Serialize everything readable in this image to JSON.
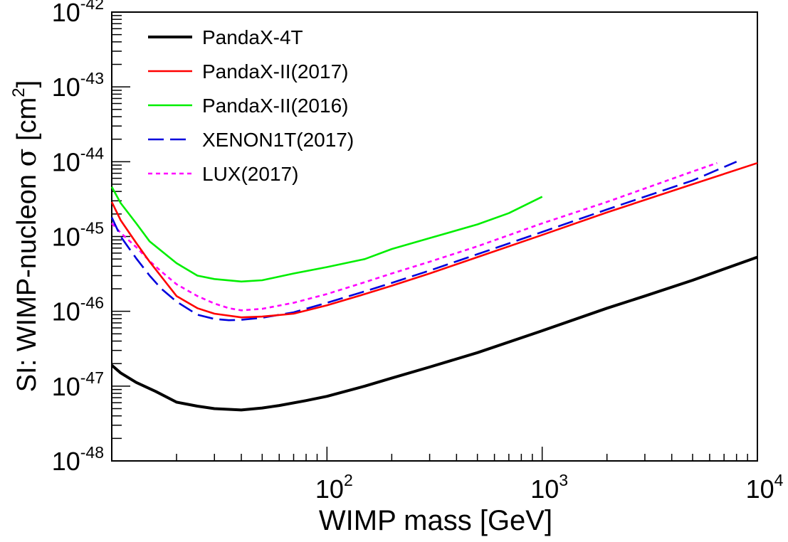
{
  "chart_data": {
    "type": "line",
    "title": "",
    "xlabel": "WIMP mass [GeV]",
    "ylabel": {
      "prefix": "SI: WIMP-nucleon ",
      "symbol": "σ",
      "unit_open": " [cm",
      "unit_exp": "2",
      "unit_close": "]"
    },
    "xscale": "log",
    "yscale": "log",
    "xlim": [
      10,
      10000
    ],
    "ylim": [
      1e-48,
      1e-42
    ],
    "xticks": [
      {
        "value": 100,
        "base": "10",
        "exp": "2"
      },
      {
        "value": 1000,
        "base": "10",
        "exp": "3"
      },
      {
        "value": 10000,
        "base": "10",
        "exp": "4"
      }
    ],
    "yticks": [
      {
        "value": 1e-48,
        "base": "10",
        "exp": "-48"
      },
      {
        "value": 1e-47,
        "base": "10",
        "exp": "-47"
      },
      {
        "value": 1e-46,
        "base": "10",
        "exp": "-46"
      },
      {
        "value": 1e-45,
        "base": "10",
        "exp": "-45"
      },
      {
        "value": 1e-44,
        "base": "10",
        "exp": "-44"
      },
      {
        "value": 1e-43,
        "base": "10",
        "exp": "-43"
      },
      {
        "value": 1e-42,
        "base": "10",
        "exp": "-42"
      }
    ],
    "grid": false,
    "legend_position": "top-left",
    "series": [
      {
        "name": "PandaX-4T",
        "color": "#000000",
        "dash": "solid",
        "width": "thick",
        "x": [
          10,
          11,
          13,
          16,
          20,
          25,
          30,
          40,
          50,
          60,
          80,
          100,
          150,
          200,
          300,
          500,
          1000,
          2000,
          3000,
          5000,
          10000
        ],
        "y": [
          1.9e-47,
          1.5e-47,
          1.12e-47,
          8.5e-48,
          6.1e-48,
          5.4e-48,
          5e-48,
          4.8e-48,
          5.1e-48,
          5.5e-48,
          6.4e-48,
          7.3e-48,
          1e-47,
          1.28e-47,
          1.8e-47,
          2.8e-47,
          5.5e-47,
          1.1e-46,
          1.6e-46,
          2.6e-46,
          5.3e-46
        ]
      },
      {
        "name": "PandaX-II(2017)",
        "color": "#ff0000",
        "dash": "solid",
        "width": "normal",
        "x": [
          10,
          11,
          13,
          15,
          17,
          20,
          25,
          30,
          40,
          50,
          70,
          100,
          150,
          200,
          300,
          500,
          1000,
          2000,
          5000,
          10000
        ],
        "y": [
          2.9e-45,
          1.65e-45,
          8.2e-46,
          4.6e-46,
          2.9e-46,
          1.6e-46,
          1.1e-46,
          9.3e-47,
          8.3e-47,
          8.5e-47,
          9.3e-47,
          1.2e-46,
          1.7e-46,
          2.2e-46,
          3.2e-46,
          5.3e-46,
          1.05e-45,
          2.1e-45,
          5e-45,
          9.6e-45
        ]
      },
      {
        "name": "PandaX-II(2016)",
        "color": "#00ee00",
        "dash": "solid",
        "width": "normal",
        "x": [
          10,
          11,
          13,
          15,
          20,
          25,
          30,
          40,
          50,
          70,
          100,
          150,
          200,
          300,
          500,
          700,
          1000
        ],
        "y": [
          4.6e-45,
          2.8e-45,
          1.5e-45,
          8.6e-46,
          4.4e-46,
          3e-46,
          2.7e-46,
          2.5e-46,
          2.6e-46,
          3.2e-46,
          3.9e-46,
          5e-46,
          6.8e-46,
          9.5e-46,
          1.45e-45,
          2.05e-45,
          3.4e-45
        ]
      },
      {
        "name": "XENON1T(2017)",
        "color": "#0000dd",
        "dash": "long-dash",
        "width": "normal",
        "x": [
          10,
          11,
          13,
          15,
          17,
          20,
          25,
          30,
          35,
          40,
          50,
          70,
          100,
          150,
          200,
          300,
          500,
          1000,
          2000,
          5000,
          8000
        ],
        "y": [
          1.8e-45,
          1e-45,
          5.1e-46,
          3e-46,
          2e-46,
          1.35e-46,
          9e-47,
          7.9e-47,
          7.6e-47,
          7.7e-47,
          8.2e-47,
          9.7e-47,
          1.3e-46,
          1.85e-46,
          2.4e-46,
          3.5e-46,
          5.8e-46,
          1.15e-45,
          2.3e-45,
          5.6e-45,
          1e-44
        ]
      },
      {
        "name": "LUX(2017)",
        "color": "#ff00ff",
        "dash": "dotted",
        "width": "normal",
        "x": [
          10,
          11,
          13,
          15,
          17,
          20,
          25,
          30,
          35,
          40,
          50,
          70,
          100,
          150,
          200,
          300,
          500,
          1000,
          2000,
          5000,
          6500
        ],
        "y": [
          1.5e-45,
          1.12e-45,
          7.2e-46,
          4.7e-46,
          3.4e-46,
          2.3e-46,
          1.6e-46,
          1.27e-46,
          1.1e-46,
          1.03e-46,
          1.08e-46,
          1.3e-46,
          1.7e-46,
          2.45e-46,
          3.2e-46,
          4.6e-46,
          7.4e-46,
          1.5e-45,
          2.9e-45,
          7.4e-45,
          9.6e-45
        ]
      }
    ]
  }
}
